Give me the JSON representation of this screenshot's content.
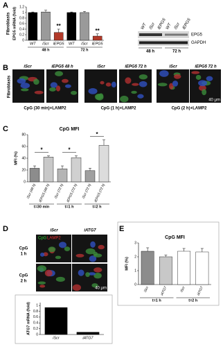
{
  "chart_data": [
    {
      "type": "bar",
      "y_label": "EPG5 mRNA (fold)",
      "side_label": "Fibroblasts",
      "categories": [
        "WT",
        "iScr",
        "iEPG5",
        "WT",
        "iScr",
        "iEPG5"
      ],
      "group_labels": [
        "48 h",
        "72 h"
      ],
      "values": [
        1,
        1.02,
        0.28,
        1,
        1,
        0.15
      ],
      "errors": [
        0.02,
        0.06,
        0.12,
        0.02,
        0.04,
        0.08
      ],
      "value_annotations": [
        null,
        null,
        "**",
        null,
        null,
        "**"
      ],
      "colors": [
        "#000000",
        "#9a9a9a",
        "#b23a2a",
        "#000000",
        "#9a9a9a",
        "#b23a2a"
      ],
      "ylim": [
        0,
        1.2
      ],
      "yticks": [
        0,
        0.2,
        0.4,
        0.6,
        0.8,
        1,
        1.2
      ]
    },
    {
      "type": "bar",
      "title": "CpG MFI",
      "y_label": "MFI (%)",
      "categories": [
        "iScr (48 h)",
        "iEPG5 (48 h)",
        "iScr (72 h)",
        "iEPG5 (72 h)",
        "iScr (72 h)",
        "iEPG5 (72 h)"
      ],
      "group_labels": [
        "t=30 min",
        "t=1 h",
        "t=2 h"
      ],
      "bracket_labels": [
        "*",
        "*",
        "*"
      ],
      "values": [
        23,
        42,
        22,
        41,
        19,
        62
      ],
      "errors": [
        4,
        2,
        5,
        3,
        4,
        9
      ],
      "colors": [
        "#8c8c8c",
        "#c8c8c8",
        "#b4b4b4",
        "#d0d0d0",
        "#a0a0a0",
        "#dcdcdc"
      ],
      "ylim": [
        0,
        80
      ],
      "yticks": [
        0,
        20,
        40,
        60,
        80
      ]
    },
    {
      "type": "bar",
      "y_label": "ATG7 mRNA (fold)",
      "categories": [
        "iScr",
        "iATG7"
      ],
      "values": [
        0.93,
        0.08
      ],
      "colors": [
        "#000000",
        "#000000"
      ],
      "ylim": [
        0,
        1.1
      ],
      "yticks": [
        0,
        0.2,
        0.4,
        0.6,
        0.8,
        1
      ]
    },
    {
      "type": "bar",
      "title": "CpG MFI",
      "y_label": "MFI (%)",
      "categories": [
        "iScr",
        "iATG7",
        "iScr",
        "iATG7"
      ],
      "group_labels": [
        "t=1 h",
        "t=2 h"
      ],
      "values": [
        2.4,
        2.0,
        2.4,
        2.35
      ],
      "errors": [
        0.25,
        0.12,
        0.2,
        0.25
      ],
      "colors": [
        "#8c8c8c",
        "#c8c8c8",
        "#ffffff",
        "#ffffff"
      ],
      "ylim": [
        0,
        3
      ],
      "yticks": [
        0,
        1,
        2,
        3
      ]
    }
  ],
  "figure": {
    "panels": [
      "A",
      "B",
      "C",
      "D",
      "E"
    ],
    "blot": {
      "lanes": [
        "WT",
        "iScr",
        "iEPG5",
        "WT",
        "iScr",
        "iEPG5"
      ],
      "bands": [
        "EPG5",
        "GAPDH"
      ],
      "times": [
        "48 h",
        "72 h"
      ]
    },
    "panel_b": {
      "side_label": "Fibroblasts",
      "labels": [
        "iScr",
        "iEPG5 48 h",
        "iScr",
        "iEPG5 72 h",
        "iScr",
        "iEPG5 72 h"
      ],
      "captions": [
        "CpG (30 min)+LAMP2",
        "CpG (1 h)+LAMP2",
        "CpG (2 h)+LAMP2"
      ],
      "scale": "40 μm"
    },
    "panel_d": {
      "columns": [
        "iScr",
        "iATG7"
      ],
      "stain": [
        "CpG",
        "LAMP2"
      ],
      "rows": [
        [
          "CpG",
          "1 h"
        ],
        [
          "CpG",
          "2 h"
        ]
      ],
      "scale": "40 μm"
    }
  }
}
